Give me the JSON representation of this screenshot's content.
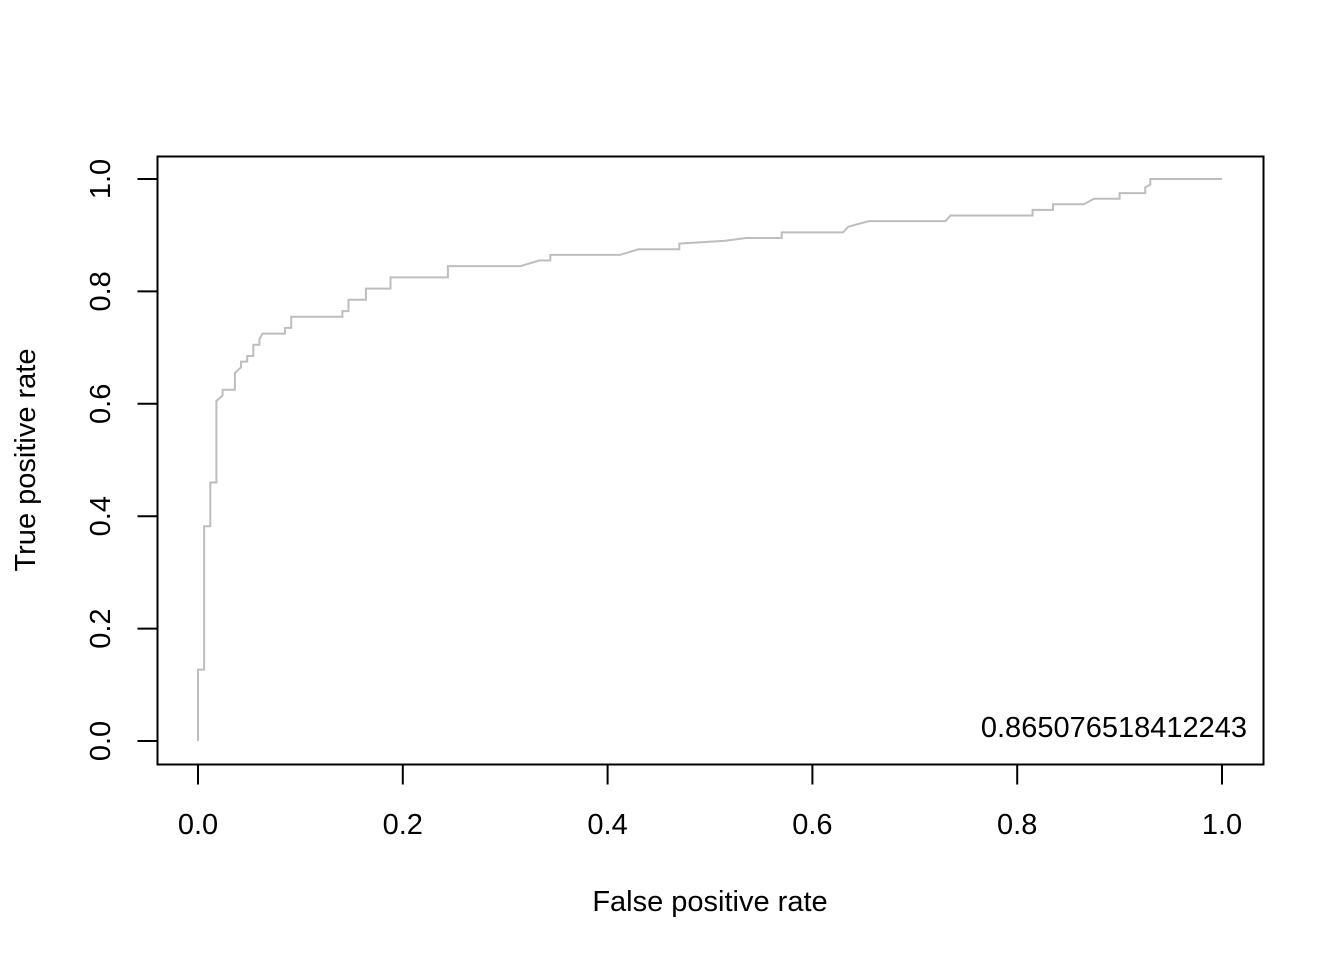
{
  "chart_data": {
    "type": "line",
    "title": "",
    "xlabel": "False positive rate",
    "ylabel": "True positive rate",
    "xlim": [
      0,
      1
    ],
    "ylim": [
      0,
      1
    ],
    "x_ticks": [
      "0.0",
      "0.2",
      "0.4",
      "0.6",
      "0.8",
      "1.0"
    ],
    "y_ticks": [
      "0.0",
      "0.2",
      "0.4",
      "0.6",
      "0.8",
      "1.0"
    ],
    "grid": false,
    "legend": "none",
    "annotation": "0.865076518412243",
    "series": [
      {
        "color": "#bebebe",
        "points": [
          [
            0.0,
            0.0
          ],
          [
            0.0,
            0.127
          ],
          [
            0.006,
            0.127
          ],
          [
            0.006,
            0.382
          ],
          [
            0.012,
            0.382
          ],
          [
            0.012,
            0.46
          ],
          [
            0.018,
            0.46
          ],
          [
            0.018,
            0.605
          ],
          [
            0.024,
            0.615
          ],
          [
            0.024,
            0.625
          ],
          [
            0.036,
            0.625
          ],
          [
            0.036,
            0.655
          ],
          [
            0.042,
            0.665
          ],
          [
            0.042,
            0.675
          ],
          [
            0.048,
            0.675
          ],
          [
            0.048,
            0.685
          ],
          [
            0.054,
            0.685
          ],
          [
            0.054,
            0.705
          ],
          [
            0.06,
            0.705
          ],
          [
            0.06,
            0.715
          ],
          [
            0.063,
            0.725
          ],
          [
            0.085,
            0.725
          ],
          [
            0.085,
            0.735
          ],
          [
            0.091,
            0.735
          ],
          [
            0.091,
            0.755
          ],
          [
            0.141,
            0.755
          ],
          [
            0.141,
            0.765
          ],
          [
            0.147,
            0.765
          ],
          [
            0.147,
            0.785
          ],
          [
            0.164,
            0.785
          ],
          [
            0.164,
            0.805
          ],
          [
            0.188,
            0.805
          ],
          [
            0.188,
            0.825
          ],
          [
            0.244,
            0.825
          ],
          [
            0.244,
            0.845
          ],
          [
            0.315,
            0.845
          ],
          [
            0.333,
            0.855
          ],
          [
            0.344,
            0.855
          ],
          [
            0.344,
            0.865
          ],
          [
            0.412,
            0.865
          ],
          [
            0.43,
            0.875
          ],
          [
            0.47,
            0.875
          ],
          [
            0.47,
            0.885
          ],
          [
            0.515,
            0.89
          ],
          [
            0.535,
            0.895
          ],
          [
            0.57,
            0.895
          ],
          [
            0.57,
            0.905
          ],
          [
            0.63,
            0.905
          ],
          [
            0.635,
            0.915
          ],
          [
            0.655,
            0.925
          ],
          [
            0.73,
            0.925
          ],
          [
            0.735,
            0.935
          ],
          [
            0.815,
            0.935
          ],
          [
            0.815,
            0.945
          ],
          [
            0.835,
            0.945
          ],
          [
            0.835,
            0.955
          ],
          [
            0.865,
            0.955
          ],
          [
            0.875,
            0.965
          ],
          [
            0.9,
            0.965
          ],
          [
            0.9,
            0.975
          ],
          [
            0.925,
            0.975
          ],
          [
            0.925,
            0.985
          ],
          [
            0.93,
            0.99
          ],
          [
            0.93,
            1.0
          ],
          [
            1.0,
            1.0
          ]
        ]
      }
    ]
  }
}
